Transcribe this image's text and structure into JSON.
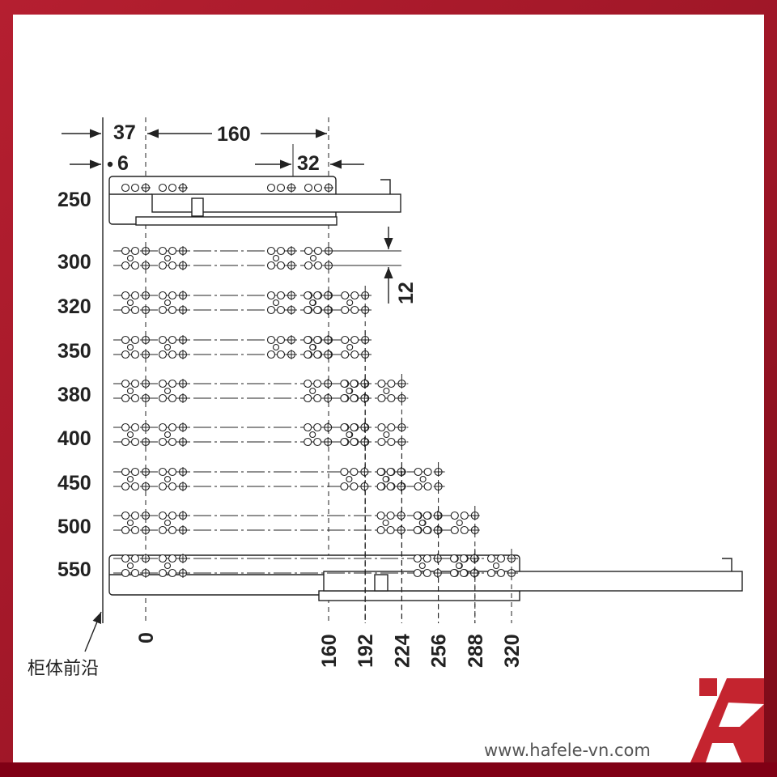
{
  "dimensions": {
    "front_offset": "37",
    "pitch": "160",
    "step": "32",
    "edge": "6",
    "hole_spacing": "12"
  },
  "rows": [
    {
      "height": "250",
      "rear": [
        160
      ]
    },
    {
      "height": "300",
      "rear": [
        160
      ]
    },
    {
      "height": "320",
      "rear": [
        160,
        192
      ]
    },
    {
      "height": "350",
      "rear": [
        160,
        192
      ]
    },
    {
      "height": "380",
      "rear": [
        192,
        224
      ]
    },
    {
      "height": "400",
      "rear": [
        192,
        224
      ]
    },
    {
      "height": "450",
      "rear": [
        224,
        256
      ]
    },
    {
      "height": "500",
      "rear": [
        256,
        288
      ]
    },
    {
      "height": "550",
      "rear": [
        288,
        320
      ]
    }
  ],
  "columns": [
    "0",
    "160",
    "192",
    "224",
    "256",
    "288",
    "320"
  ],
  "cabinet_front_label": "柜体前沿",
  "website": "www.hafele-vn.com",
  "colors": {
    "border": "#a81e2c",
    "logo": "#c4242f"
  }
}
